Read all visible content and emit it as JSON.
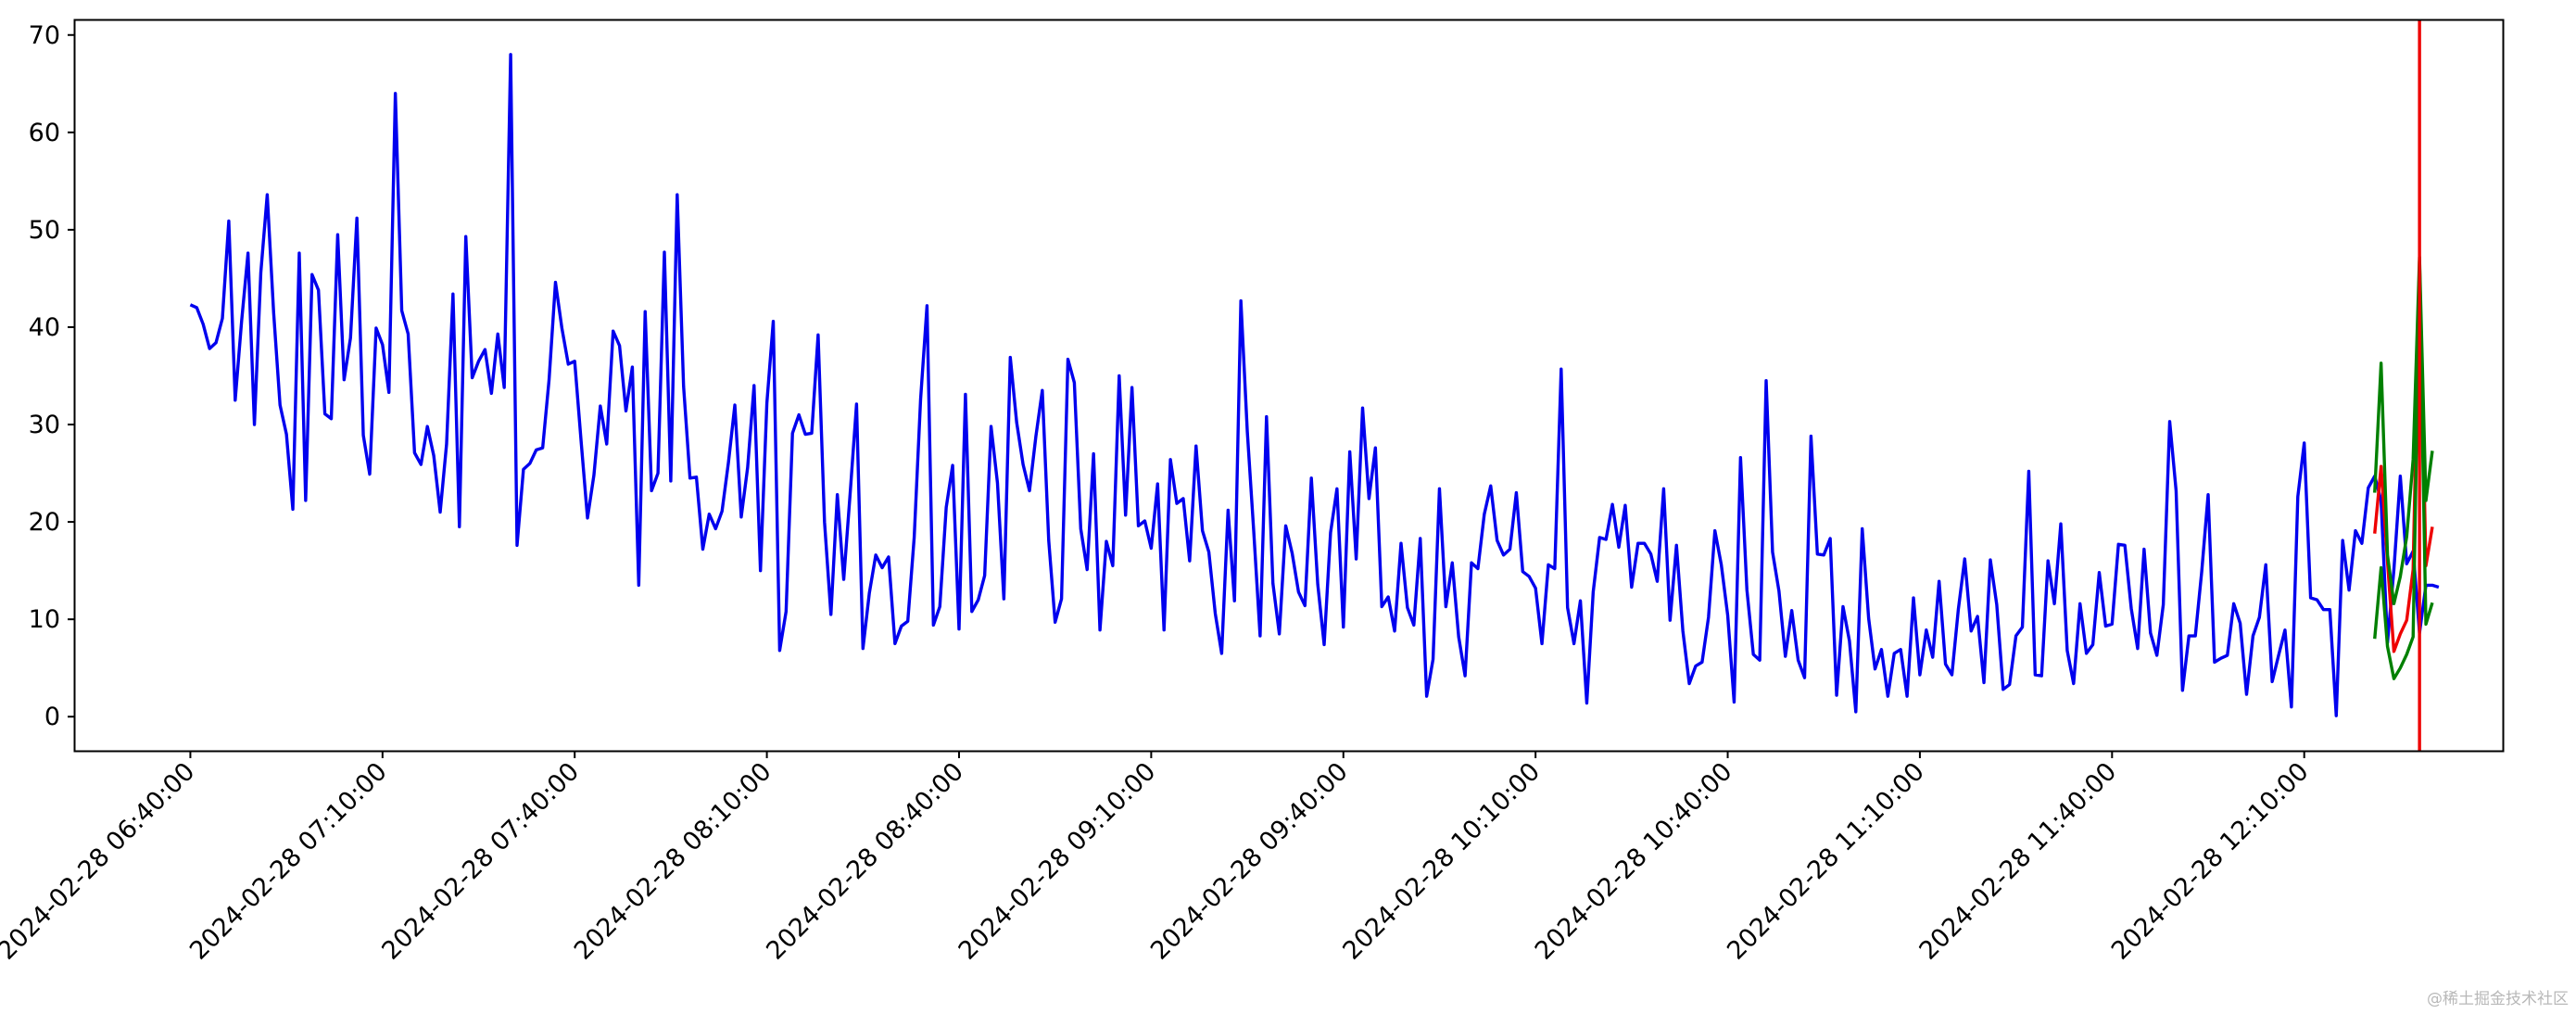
{
  "chart_data": {
    "type": "line",
    "title": "",
    "xlabel": "",
    "ylabel": "",
    "ylim": [
      -3.5,
      71.5
    ],
    "yticks": [
      0,
      10,
      20,
      30,
      40,
      50,
      60,
      70
    ],
    "xlim": [
      "2024-02-28 06:22:00",
      "2024-02-28 12:41:00"
    ],
    "xticks": [
      "2024-02-28 06:40:00",
      "2024-02-28 07:10:00",
      "2024-02-28 07:40:00",
      "2024-02-28 08:10:00",
      "2024-02-28 08:40:00",
      "2024-02-28 09:10:00",
      "2024-02-28 09:40:00",
      "2024-02-28 10:10:00",
      "2024-02-28 10:40:00",
      "2024-02-28 11:10:00",
      "2024-02-28 11:40:00",
      "2024-02-28 12:10:00"
    ],
    "x_start": "2024-02-28 06:40:00",
    "x_step": "1min",
    "grid": false,
    "legend": "none",
    "series": [
      {
        "color": "#0000ee",
        "values": [
          42.3,
          42.0,
          40.3,
          37.8,
          38.4,
          40.9,
          50.9,
          32.5,
          40.6,
          47.6,
          30.0,
          45.6,
          53.6,
          41.5,
          32.0,
          29.0,
          21.3,
          47.6,
          22.2,
          45.4,
          43.8,
          31.1,
          30.6,
          49.5,
          34.6,
          38.9,
          51.2,
          28.9,
          24.9,
          39.9,
          38.2,
          33.3,
          64.0,
          41.7,
          39.3,
          27.1,
          25.9,
          29.8,
          26.8,
          21.0,
          28.0,
          43.4,
          19.5,
          49.3,
          34.8,
          36.5,
          37.7,
          33.2,
          39.3,
          33.8,
          68.0,
          17.6,
          25.4,
          26.0,
          27.4,
          27.6,
          34.6,
          44.6,
          39.9,
          36.2,
          36.5,
          28.3,
          20.4,
          24.8,
          31.9,
          28.0,
          39.6,
          38.1,
          31.4,
          35.9,
          13.5,
          41.6,
          23.2,
          25.0,
          47.7,
          24.2,
          53.6,
          33.9,
          24.5,
          24.6,
          17.2,
          20.8,
          19.3,
          21.1,
          26.1,
          32.0,
          20.5,
          25.6,
          34.0,
          15.0,
          32.2,
          40.6,
          6.8,
          10.8,
          29.1,
          31.0,
          29.0,
          29.1,
          39.2,
          20.0,
          10.5,
          22.8,
          14.1,
          22.9,
          32.1,
          7.0,
          12.7,
          16.6,
          15.3,
          16.4,
          7.5,
          9.3,
          9.8,
          18.4,
          32.6,
          42.2,
          9.4,
          11.3,
          21.5,
          25.8,
          9.0,
          33.1,
          10.8,
          12.0,
          14.5,
          29.8,
          24.0,
          12.1,
          36.9,
          30.2,
          25.9,
          23.2,
          28.8,
          33.5,
          18.1,
          9.7,
          12.1,
          36.7,
          34.3,
          19.3,
          15.1,
          27.0,
          8.9,
          18.0,
          15.5,
          35.0,
          20.7,
          33.8,
          19.6,
          20.1,
          17.3,
          23.9,
          8.9,
          26.4,
          21.9,
          22.4,
          16.0,
          27.8,
          19.1,
          16.9,
          10.6,
          6.5,
          21.2,
          11.9,
          42.7,
          29.3,
          19.1,
          8.3,
          30.8,
          13.7,
          8.5,
          19.6,
          16.8,
          12.8,
          11.4,
          24.5,
          13.6,
          7.4,
          18.9,
          23.4,
          9.2,
          27.2,
          16.2,
          31.7,
          22.4,
          27.6,
          11.3,
          12.3,
          8.8,
          17.8,
          11.2,
          9.4,
          18.3,
          2.1,
          5.9,
          23.4,
          11.3,
          15.8,
          8.2,
          4.2,
          15.8,
          15.2,
          20.8,
          23.7,
          18.1,
          16.6,
          17.2,
          23.0,
          14.9,
          14.4,
          13.2,
          7.5,
          15.6,
          15.2,
          35.7,
          11.2,
          7.5,
          11.9,
          1.4,
          12.8,
          18.4,
          18.2,
          21.8,
          17.4,
          21.7,
          13.3,
          17.8,
          17.8,
          16.7,
          13.9,
          23.4,
          9.9,
          17.6,
          8.8,
          3.4,
          5.2,
          5.6,
          10.2,
          19.1,
          15.6,
          10.4,
          1.5,
          26.6,
          13.0,
          6.4,
          5.8,
          34.5,
          16.9,
          12.9,
          6.2,
          10.9,
          5.8,
          4.0,
          28.8,
          16.7,
          16.6,
          18.3,
          2.2,
          11.3,
          7.8,
          0.5,
          19.3,
          10.1,
          4.9,
          6.9,
          2.1,
          6.5,
          6.9,
          2.1,
          12.2,
          4.3,
          8.9,
          6.1,
          13.9,
          5.4,
          4.3,
          11.0,
          16.2,
          8.8,
          10.3,
          3.5,
          16.1,
          11.5,
          2.8,
          3.3,
          8.3,
          9.2,
          25.2,
          4.3,
          4.2,
          16.0,
          11.6,
          19.8,
          6.8,
          3.4,
          11.6,
          6.5,
          7.4,
          14.8,
          9.3,
          9.5,
          17.7,
          17.6,
          11.1,
          7.0,
          17.2,
          8.6,
          6.3,
          11.5,
          30.3,
          23.2,
          2.7,
          8.3,
          8.3,
          14.9,
          22.8,
          5.6,
          6.0,
          6.3,
          11.6,
          9.6,
          2.3,
          8.3,
          10.2,
          15.6,
          3.6,
          6.3,
          8.9,
          1.0,
          22.6,
          28.1,
          12.2,
          12.0,
          11.0,
          11.0,
          0.1,
          18.1,
          13.0,
          19.1,
          17.8,
          23.5,
          24.7,
          22.2,
          7.6,
          15.1,
          24.7,
          15.7,
          17.0,
          8.6,
          13.5,
          13.5,
          13.3
        ]
      },
      {
        "color": "#ee0000",
        "x_start": "2024-02-28 12:21:00",
        "values": [
          18.8,
          25.7,
          15.9,
          6.7,
          8.5,
          9.9,
          15.1,
          46.8,
          15.5,
          19.5
        ]
      },
      {
        "color": "#008000",
        "x_start": "2024-02-28 12:21:00",
        "values": [
          23.0,
          36.3,
          16.6,
          11.6,
          14.4,
          18.5,
          26.4,
          47.2,
          22.2,
          27.3
        ]
      },
      {
        "color": "#008000",
        "x_start": "2024-02-28 12:21:00",
        "values": [
          8.0,
          15.3,
          7.2,
          3.9,
          5.0,
          6.4,
          8.2,
          45.1,
          9.5,
          11.7
        ]
      }
    ],
    "vline": {
      "x": "2024-02-28 12:28:00",
      "color": "#ee0000"
    }
  },
  "watermark": "@稀土掘金技术社区"
}
